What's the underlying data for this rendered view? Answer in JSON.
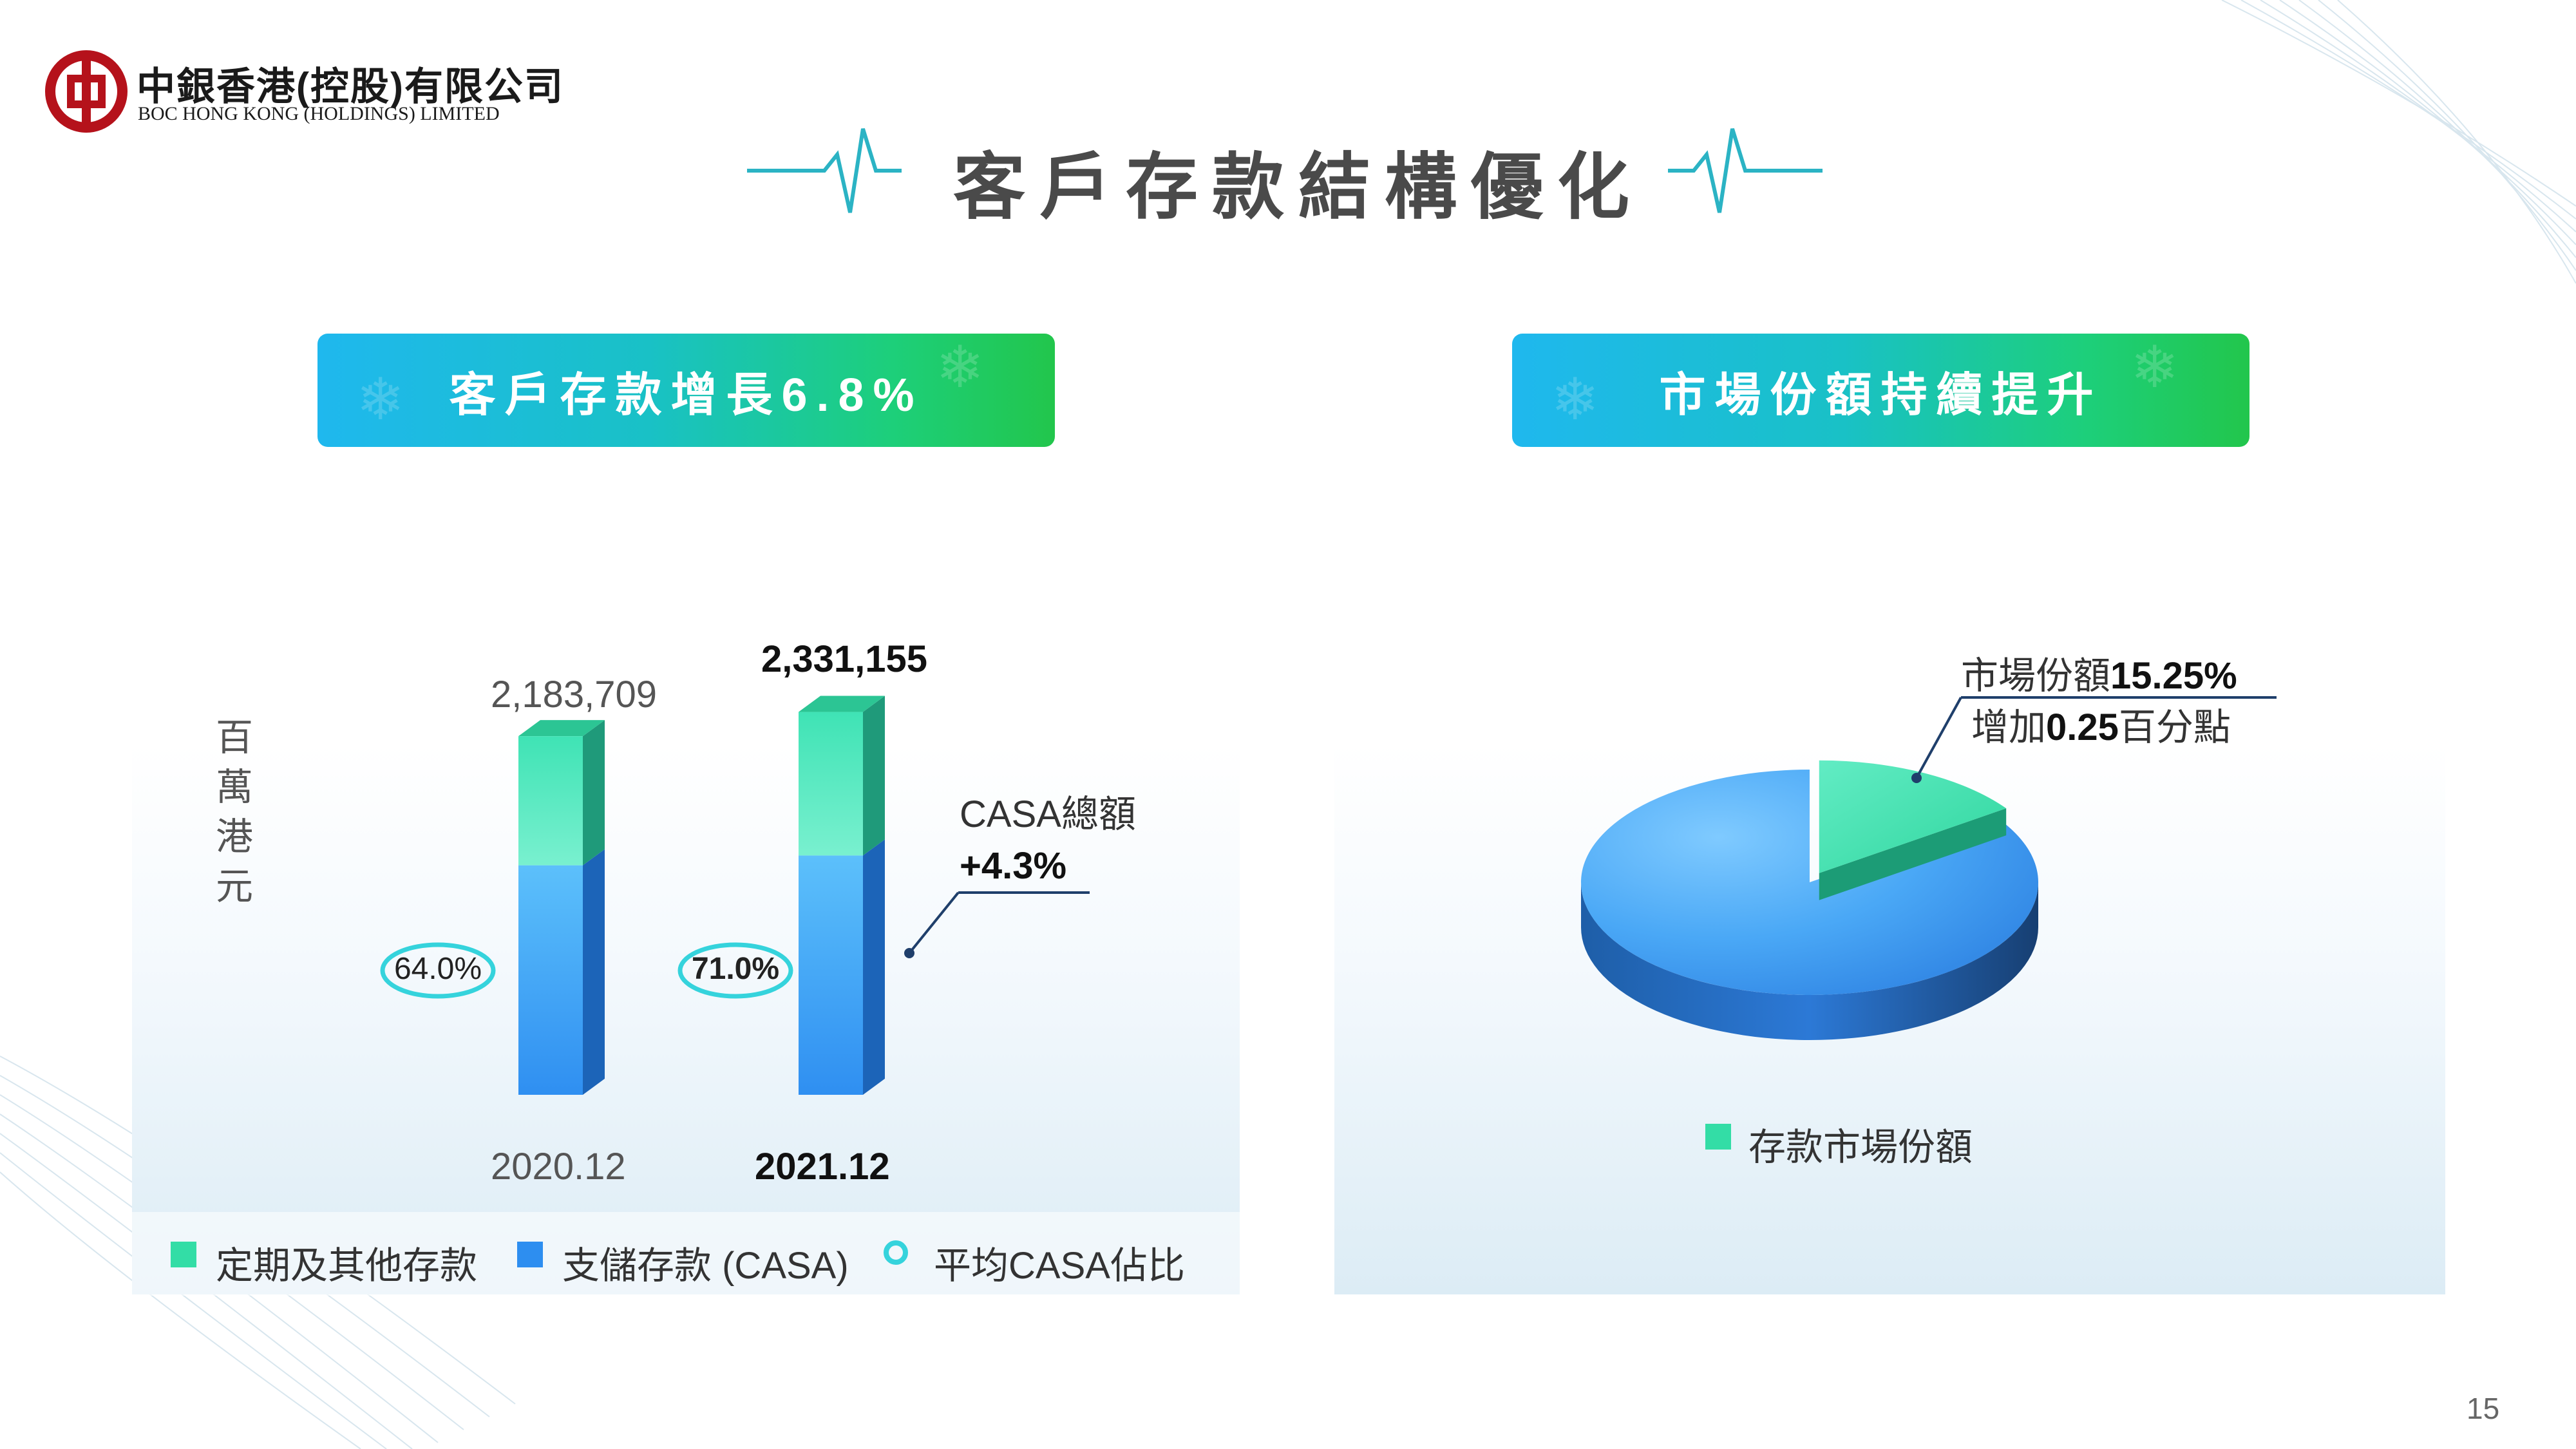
{
  "logo": {
    "cn": "中銀香港(控股)有限公司",
    "en": "BOC HONG KONG (HOLDINGS) LIMITED"
  },
  "title": "客戶存款結構優化",
  "banners": {
    "left": "客戶存款增長6.8%",
    "right": "市場份額持續提升"
  },
  "colors": {
    "term_deposits": "#33dda6",
    "casa": "#36a3f4",
    "ring": "#35d3dc",
    "banner_start": "#1fb8ee",
    "banner_end": "#22c64c"
  },
  "chart_data": [
    {
      "type": "bar",
      "stacked": true,
      "unit_label": "百萬港元",
      "unit_chars": [
        "百",
        "萬",
        "港",
        "元"
      ],
      "categories": [
        "2020.12",
        "2021.12"
      ],
      "totals": [
        "2,183,709",
        "2,331,155"
      ],
      "series": [
        {
          "name": "支儲存款 (CASA)",
          "values": [
            1397574,
            1457322
          ]
        },
        {
          "name": "定期及其他存款",
          "values": [
            786135,
            873833
          ]
        }
      ],
      "average_casa_ratio": {
        "name": "平均CASA佔比",
        "values": [
          "64.0%",
          "71.0%"
        ]
      },
      "annotation": {
        "line1": "CASA總額",
        "line2": "+4.3%"
      },
      "legend": [
        "定期及其他存款",
        "支儲存款 (CASA)",
        "平均CASA佔比"
      ]
    },
    {
      "type": "pie",
      "slices": [
        {
          "name": "存款市場份額",
          "value": 15.25
        },
        {
          "name": "",
          "value": 84.75
        }
      ],
      "annotation": {
        "line1_prefix": "市場份額",
        "line1_value": "15.25%",
        "line2_prefix": "增加",
        "line2_value": "0.25",
        "line2_suffix": "百分點"
      },
      "legend": [
        "存款市場份額"
      ]
    }
  ],
  "page_number": "15"
}
